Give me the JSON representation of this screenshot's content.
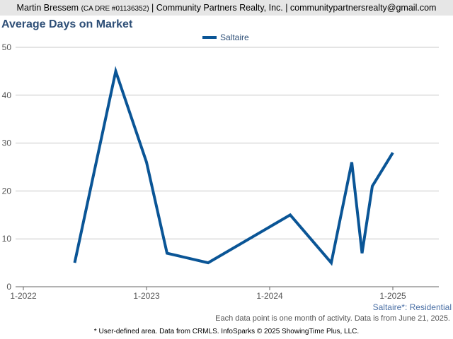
{
  "header": {
    "agent": "Martin Bressem",
    "license": "(CA DRE #01136352)",
    "company": "| Community Partners Realty, Inc. | communitypartnersrealty@gmail.com"
  },
  "chart_data": {
    "type": "line",
    "title": "Average Days on Market",
    "series": [
      {
        "name": "Saltaire",
        "color": "#0a5596",
        "points": [
          {
            "x": "2022-06",
            "y": 5
          },
          {
            "x": "2022-10",
            "y": 45
          },
          {
            "x": "2023-01",
            "y": 26
          },
          {
            "x": "2023-03",
            "y": 7
          },
          {
            "x": "2023-07",
            "y": 5
          },
          {
            "x": "2024-03",
            "y": 15
          },
          {
            "x": "2024-07",
            "y": 5
          },
          {
            "x": "2024-09",
            "y": 26
          },
          {
            "x": "2024-10",
            "y": 7
          },
          {
            "x": "2024-11",
            "y": 21
          },
          {
            "x": "2025-01",
            "y": 28
          }
        ]
      }
    ],
    "x_ticks": [
      "1-2022",
      "1-2023",
      "1-2024",
      "1-2025"
    ],
    "y_ticks": [
      0,
      10,
      20,
      30,
      40,
      50
    ],
    "ylim": [
      0,
      50
    ],
    "xlim": [
      "2022-01",
      "2025-05"
    ],
    "grid": true,
    "legend_position": "top-center"
  },
  "notes": {
    "subtitle": "Saltaire*: Residential",
    "activity": "Each data point is one month of activity. Data is from June 21, 2025.",
    "footer": "* User-defined area. Data from CRMLS. InfoSparks © 2025 ShowingTime Plus, LLC."
  }
}
